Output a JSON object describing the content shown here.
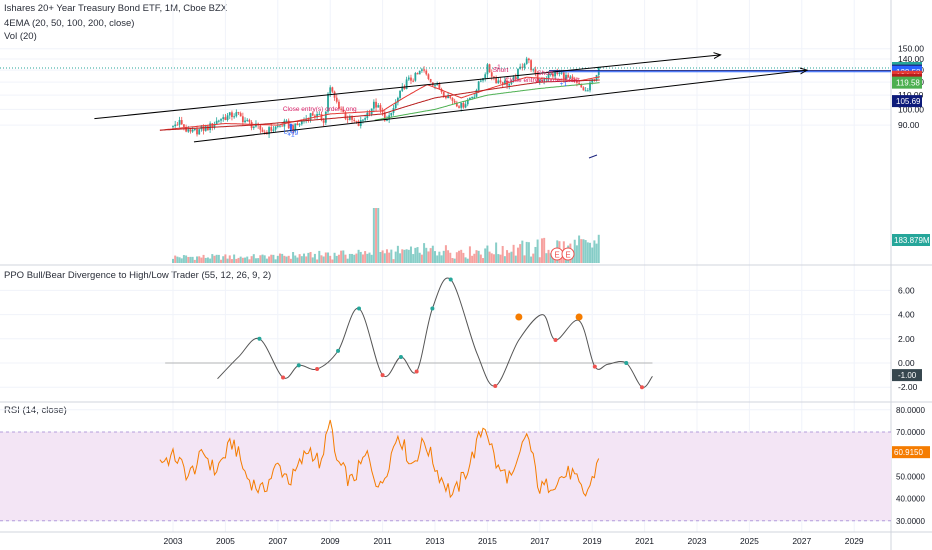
{
  "header": {
    "title": "Ishares 20+ Year Treasury Bond ETF, 1M, Cboe BZX",
    "indicator_ema": "4EMA (20, 50, 100, 200, close)",
    "indicator_vol": "Vol (20)",
    "ppo_title": "PPO Bull/Bear Divergence to High/Low Trader (55, 12, 26, 9, 2)",
    "rsi_title": "RSI (14, close)"
  },
  "colors": {
    "up": "#26a69a",
    "down": "#ef5350",
    "ema20": "#e53935",
    "ema50": "#b71c1c",
    "ema200": "#4caf50",
    "channel": "#000000",
    "hline": "#2962ff",
    "ppo": "#555555",
    "rsi": "#f57c00",
    "rsi_band": "#f3e5f5"
  },
  "chart_data": [
    {
      "type": "candlestick",
      "title": "Ishares 20+ Year Treasury Bond ETF, 1M, Cboe BZX",
      "y_scale": "log",
      "ylim": [
        78,
        152
      ],
      "xlim": [
        2002.5,
        2030.5
      ],
      "x_tick_labels": [
        "2003",
        "2005",
        "2007",
        "2009",
        "2011",
        "2013",
        "2015",
        "2017",
        "2019",
        "2021",
        "2023",
        "2025",
        "2027",
        "2029"
      ],
      "y_tick_labels": [
        "90.00",
        "100.00",
        "110.00",
        "120.00",
        "130.00",
        "140.00",
        "150.00"
      ],
      "y_tick_values": [
        90,
        100,
        110,
        120,
        130,
        140,
        150
      ],
      "keypoints": [
        [
          2002.5,
          84
        ],
        [
          2003.3,
          92
        ],
        [
          2003.6,
          85
        ],
        [
          2004.4,
          89
        ],
        [
          2004.8,
          94
        ],
        [
          2005.4,
          97
        ],
        [
          2005.9,
          91
        ],
        [
          2006.5,
          86
        ],
        [
          2007.3,
          91
        ],
        [
          2007.6,
          88
        ],
        [
          2008.3,
          97
        ],
        [
          2008.8,
          93
        ],
        [
          2008.95,
          117
        ],
        [
          2009.2,
          106
        ],
        [
          2009.6,
          95
        ],
        [
          2010.1,
          90
        ],
        [
          2010.7,
          104
        ],
        [
          2011.2,
          92
        ],
        [
          2011.6,
          108
        ],
        [
          2011.9,
          120
        ],
        [
          2012.3,
          125
        ],
        [
          2012.5,
          130
        ],
        [
          2012.9,
          120
        ],
        [
          2013.5,
          109
        ],
        [
          2014.0,
          102
        ],
        [
          2014.5,
          111
        ],
        [
          2015.0,
          132
        ],
        [
          2015.3,
          122
        ],
        [
          2015.9,
          118
        ],
        [
          2016.5,
          141
        ],
        [
          2016.9,
          121
        ],
        [
          2017.4,
          126
        ],
        [
          2017.8,
          127
        ],
        [
          2018.3,
          120
        ],
        [
          2018.8,
          112
        ],
        [
          2019.0,
          121
        ],
        [
          2019.3,
          132
        ]
      ],
      "ema_keypoints": {
        "ema20": [
          [
            2002.5,
            87
          ],
          [
            2005,
            91
          ],
          [
            2007,
            90
          ],
          [
            2009,
            97
          ],
          [
            2011,
            99
          ],
          [
            2012.7,
            118
          ],
          [
            2014,
            108
          ],
          [
            2016.5,
            124
          ],
          [
            2018.5,
            121
          ],
          [
            2019.3,
            124.4
          ]
        ],
        "ema50": [
          [
            2002.5,
            87
          ],
          [
            2006,
            90
          ],
          [
            2009,
            94
          ],
          [
            2011,
            97
          ],
          [
            2013,
            108
          ],
          [
            2015,
            114
          ],
          [
            2017,
            120
          ],
          [
            2019.3,
            121.7
          ]
        ],
        "ema200": [
          [
            2010.7,
            93
          ],
          [
            2013,
            100
          ],
          [
            2015,
            110
          ],
          [
            2017,
            115
          ],
          [
            2019.3,
            119.6
          ]
        ]
      },
      "channel_upper": [
        [
          2000.0,
          94
        ],
        [
          2023.9,
          144
        ]
      ],
      "channel_lower": [
        [
          2003.8,
          80.5
        ],
        [
          2027.2,
          130
        ]
      ],
      "horizontal_lines": [
        129.58,
        128.58
      ],
      "price_labels": [
        {
          "text": "131.87",
          "value": 131.87,
          "color": "#26a69a"
        },
        {
          "text": "129.58",
          "value": 129.58,
          "color": "#1a237e"
        },
        {
          "text": "128.58",
          "value": 128.58,
          "color": "#2962ff"
        },
        {
          "text": "124.41",
          "value": 124.41,
          "color": "#e53935"
        },
        {
          "text": "121.71",
          "value": 121.71,
          "color": "#b71c1c"
        },
        {
          "text": "119.58",
          "value": 119.58,
          "color": "#4caf50"
        },
        {
          "text": "105.69",
          "value": 105.69,
          "color": "#0d1b7a"
        }
      ],
      "annotations": [
        {
          "text": "Close entry(s) order Long",
          "x": 2008.6,
          "y": 99
        },
        {
          "text": "Long",
          "x": 2007.5,
          "y": 85
        },
        {
          "text": "+1",
          "x": 2007.5,
          "y": 83.5
        },
        {
          "text": "Short",
          "x": 2015.5,
          "y": 128.5
        },
        {
          "text": "Short",
          "x": 2017.2,
          "y": 126
        },
        {
          "text": "Close entry(s) order Short",
          "x": 2017.1,
          "y": 120
        },
        {
          "text": "-1",
          "x": 2015.4,
          "y": 131
        },
        {
          "text": "+1",
          "x": 2017.9,
          "y": 117
        }
      ],
      "volume": {
        "label": "183.879M",
        "value_millions": 183.879,
        "earnings_markers": [
          "E",
          "E"
        ]
      }
    },
    {
      "type": "line",
      "title": "PPO Bull/Bear Divergence to High/Low Trader (55, 12, 26, 9, 2)",
      "ylim": [
        -2.8,
        7.6
      ],
      "y_tick_labels": [
        "-2.00",
        "0.00",
        "2.00",
        "4.00",
        "6.00"
      ],
      "y_tick_values": [
        -2,
        0,
        2,
        4,
        6
      ],
      "zero_line": 0,
      "last_value_label": "-1.00",
      "keypoints": [
        [
          2004.7,
          -1.3
        ],
        [
          2005.5,
          0.5
        ],
        [
          2006.3,
          2.0
        ],
        [
          2007.2,
          -1.2
        ],
        [
          2007.8,
          -0.2
        ],
        [
          2008.5,
          -0.5
        ],
        [
          2009.3,
          1.0
        ],
        [
          2010.1,
          4.5
        ],
        [
          2011.0,
          -1.0
        ],
        [
          2011.7,
          0.5
        ],
        [
          2012.3,
          -0.7
        ],
        [
          2012.9,
          4.5
        ],
        [
          2013.6,
          6.9
        ],
        [
          2014.6,
          0.8
        ],
        [
          2015.3,
          -1.9
        ],
        [
          2016.2,
          1.9
        ],
        [
          2017.1,
          4.0
        ],
        [
          2017.6,
          1.9
        ],
        [
          2018.5,
          3.5
        ],
        [
          2019.1,
          -0.3
        ],
        [
          2019.6,
          -0.1
        ],
        [
          2020.3,
          0.0
        ],
        [
          2020.9,
          -2.0
        ],
        [
          2021.3,
          -1.1
        ]
      ],
      "markers": [
        {
          "x": 2006.3,
          "y": 2.0,
          "color": "#26a69a"
        },
        {
          "x": 2007.2,
          "y": -1.2,
          "color": "#ef5350"
        },
        {
          "x": 2007.8,
          "y": -0.2,
          "color": "#26a69a"
        },
        {
          "x": 2008.5,
          "y": -0.5,
          "color": "#ef5350"
        },
        {
          "x": 2009.3,
          "y": 1.0,
          "color": "#26a69a"
        },
        {
          "x": 2010.1,
          "y": 4.5,
          "color": "#26a69a"
        },
        {
          "x": 2011.0,
          "y": -1.0,
          "color": "#ef5350"
        },
        {
          "x": 2011.7,
          "y": 0.5,
          "color": "#26a69a"
        },
        {
          "x": 2012.3,
          "y": -0.7,
          "color": "#ef5350"
        },
        {
          "x": 2012.9,
          "y": 4.5,
          "color": "#26a69a"
        },
        {
          "x": 2013.6,
          "y": 6.9,
          "color": "#26a69a"
        },
        {
          "x": 2015.3,
          "y": -1.9,
          "color": "#ef5350"
        },
        {
          "x": 2016.2,
          "y": 3.8,
          "color": "#f57c00"
        },
        {
          "x": 2017.6,
          "y": 1.9,
          "color": "#ef5350"
        },
        {
          "x": 2018.5,
          "y": 3.8,
          "color": "#f57c00"
        },
        {
          "x": 2019.1,
          "y": -0.3,
          "color": "#ef5350"
        },
        {
          "x": 2020.3,
          "y": 0.0,
          "color": "#26a69a"
        },
        {
          "x": 2020.9,
          "y": -2.0,
          "color": "#ef5350"
        }
      ]
    },
    {
      "type": "line",
      "title": "RSI (14, close)",
      "ylim": [
        26,
        84
      ],
      "y_tick_labels": [
        "30.0000",
        "40.0000",
        "50.0000",
        "60.0000",
        "70.0000",
        "80.0000"
      ],
      "y_tick_values": [
        30,
        40,
        50,
        60,
        70,
        80
      ],
      "band": [
        30,
        70
      ],
      "last_value_label": "60.9150",
      "keypoints": [
        [
          2002.5,
          57
        ],
        [
          2003.1,
          59
        ],
        [
          2003.6,
          50
        ],
        [
          2004.2,
          61
        ],
        [
          2004.6,
          52
        ],
        [
          2005.3,
          66
        ],
        [
          2005.8,
          50
        ],
        [
          2006.4,
          43
        ],
        [
          2007.0,
          55
        ],
        [
          2007.5,
          48
        ],
        [
          2008.2,
          63
        ],
        [
          2008.7,
          54
        ],
        [
          2008.95,
          78
        ],
        [
          2009.2,
          58
        ],
        [
          2009.8,
          47
        ],
        [
          2010.4,
          60
        ],
        [
          2010.9,
          44
        ],
        [
          2011.6,
          70
        ],
        [
          2012.1,
          55
        ],
        [
          2012.6,
          66
        ],
        [
          2013.1,
          52
        ],
        [
          2013.7,
          41
        ],
        [
          2014.3,
          55
        ],
        [
          2014.9,
          74
        ],
        [
          2015.4,
          53
        ],
        [
          2016.0,
          49
        ],
        [
          2016.5,
          70
        ],
        [
          2017.0,
          44
        ],
        [
          2017.6,
          48
        ],
        [
          2018.2,
          52
        ],
        [
          2018.7,
          41
        ],
        [
          2019.0,
          48
        ],
        [
          2019.3,
          61
        ]
      ]
    }
  ]
}
